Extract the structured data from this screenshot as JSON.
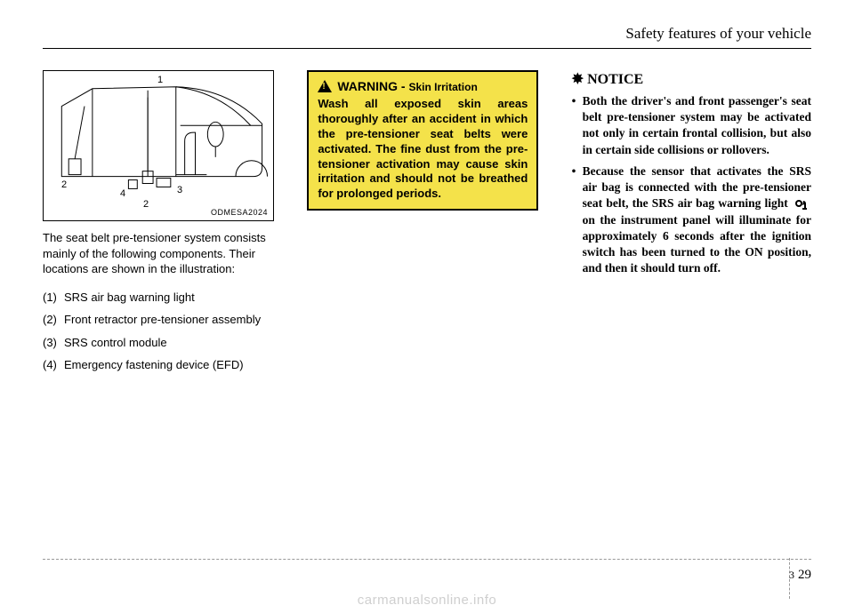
{
  "header": {
    "chapter_title": "Safety features of your vehicle"
  },
  "figure": {
    "code": "ODMESA2024",
    "callouts": [
      "1",
      "2",
      "3",
      "4",
      "2"
    ]
  },
  "col1": {
    "intro": "The seat belt pre-tensioner system consists mainly of the following com­ponents. Their locations are shown in the illustration:",
    "items": [
      {
        "num": "(1)",
        "text": "SRS air bag warning light"
      },
      {
        "num": "(2)",
        "text": "Front retractor pre-tensioner assembly"
      },
      {
        "num": "(3)",
        "text": "SRS control module"
      },
      {
        "num": "(4)",
        "text": "Emergency fastening device (EFD)"
      }
    ]
  },
  "warning": {
    "label_prefix": "WARNING -",
    "label_suffix": "Skin Irritation",
    "body": "Wash all exposed skin areas thoroughly after an accident in which the pre-tensioner seat belts were activated. The fine dust from the pre-tensioner activation may cause skin irrita­tion and should not be breathed for prolonged periods."
  },
  "notice": {
    "symbol": "✸",
    "title": "NOTICE",
    "items": [
      "Both the driver's and front pas­senger's seat belt pre-tensioner sys­tem may be activated not only in certain frontal collision, but also in certain side collisions or rollovers.",
      "Because the sensor that activates the SRS air bag is connected with the pre-tensioner seat belt, the SRS air bag warning light {ICON} on the instrument panel will illumi­nate for approximately 6 seconds after the ignition switch has been turned to the ON position, and then it should turn off."
    ]
  },
  "footer": {
    "section": "3",
    "page": "29"
  },
  "watermark": "carmanualsonline.info",
  "colors": {
    "warning_bg": "#f4e24a",
    "text": "#000000",
    "watermark": "#cfcfcf",
    "dash": "#999999"
  }
}
